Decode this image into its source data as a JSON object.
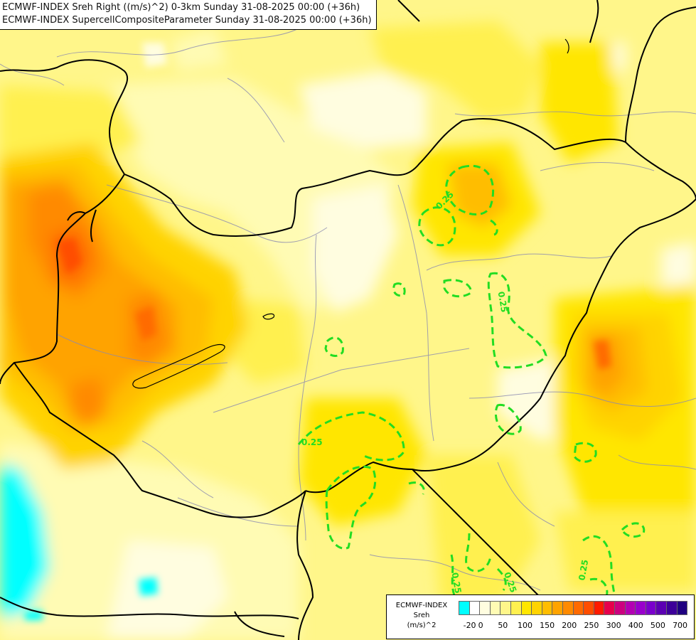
{
  "titles": {
    "line1": "ECMWF-INDEX Sreh Right ((m/s)^2) 0-3km Sunday 31-08-2025 00:00 (+36h)",
    "line2": "ECMWF-INDEX SupercellCompositeParameter Sunday 31-08-2025 00:00 (+36h)"
  },
  "contour_labels": [
    "0.25",
    "0.25",
    "0.25",
    "0.25",
    "0.25",
    "0.25"
  ],
  "legend": {
    "line1": "ECMWF-INDEX",
    "line2": "Sreh",
    "line3": "(m/s)^2",
    "colors": [
      "#00ffff",
      "#ffffff",
      "#fffde0",
      "#fffbb4",
      "#fff68a",
      "#fff04f",
      "#ffe600",
      "#ffd300",
      "#ffbd00",
      "#ffa300",
      "#ff8a00",
      "#ff6a00",
      "#ff4d00",
      "#ff1a00",
      "#e6004c",
      "#cc0080",
      "#b300b3",
      "#9900cc",
      "#7a00cc",
      "#5c00b3",
      "#3d0099",
      "#1f0080"
    ],
    "ticks": [
      "-20",
      "0",
      "50",
      "100",
      "150",
      "200",
      "250",
      "300",
      "400",
      "500",
      "700"
    ]
  }
}
